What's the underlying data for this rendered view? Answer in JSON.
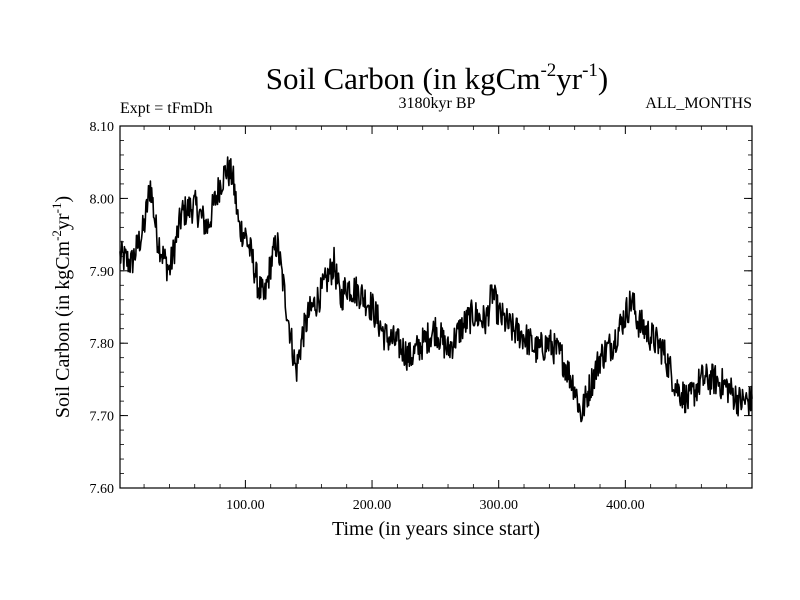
{
  "chart_data": {
    "type": "line",
    "title": {
      "base": "Soil Carbon (in kgCm",
      "sup1": "-2",
      "mid": "yr",
      "sup2": "-1",
      "end": ")"
    },
    "subtitle_left": "Expt = tFmDh",
    "subtitle_center": "3180kyr BP",
    "subtitle_right": "ALL_MONTHS",
    "xlabel": "Time (in years since start)",
    "ylabel": {
      "base": "Soil Carbon (in kgCm",
      "sup1": "-2",
      "mid": "yr",
      "sup2": "-1",
      "end": ")"
    },
    "xlim": [
      1,
      500
    ],
    "ylim": [
      7.6,
      8.1
    ],
    "xticks": [
      100,
      200,
      300,
      400
    ],
    "xtick_labels": [
      "100.00",
      "200.00",
      "300.00",
      "400.00"
    ],
    "yticks": [
      7.6,
      7.7,
      7.8,
      7.9,
      8.0,
      8.1
    ],
    "ytick_labels": [
      "7.60",
      "7.70",
      "7.80",
      "7.90",
      "8.00",
      "8.10"
    ],
    "series": [
      {
        "name": "soil-carbon",
        "color": "#000000",
        "x": [
          1,
          10,
          20,
          25,
          30,
          35,
          40,
          45,
          50,
          60,
          70,
          75,
          80,
          85,
          90,
          95,
          100,
          105,
          110,
          115,
          120,
          125,
          130,
          135,
          140,
          145,
          150,
          160,
          170,
          175,
          180,
          190,
          200,
          210,
          220,
          230,
          240,
          250,
          260,
          270,
          280,
          290,
          295,
          300,
          310,
          320,
          330,
          340,
          350,
          360,
          365,
          370,
          380,
          390,
          400,
          405,
          410,
          420,
          430,
          440,
          450,
          460,
          470,
          480,
          490,
          500
        ],
        "y": [
          7.92,
          7.91,
          7.96,
          8.02,
          7.95,
          7.92,
          7.9,
          7.94,
          7.98,
          7.99,
          7.96,
          7.99,
          8.02,
          8.04,
          8.03,
          7.96,
          7.95,
          7.92,
          7.88,
          7.86,
          7.91,
          7.94,
          7.88,
          7.82,
          7.76,
          7.81,
          7.84,
          7.87,
          7.91,
          7.86,
          7.88,
          7.87,
          7.85,
          7.81,
          7.8,
          7.78,
          7.8,
          7.82,
          7.79,
          7.82,
          7.84,
          7.83,
          7.87,
          7.84,
          7.82,
          7.81,
          7.79,
          7.8,
          7.78,
          7.74,
          7.7,
          7.73,
          7.78,
          7.8,
          7.84,
          7.86,
          7.83,
          7.81,
          7.79,
          7.74,
          7.72,
          7.75,
          7.75,
          7.74,
          7.72,
          7.72
        ]
      }
    ]
  }
}
